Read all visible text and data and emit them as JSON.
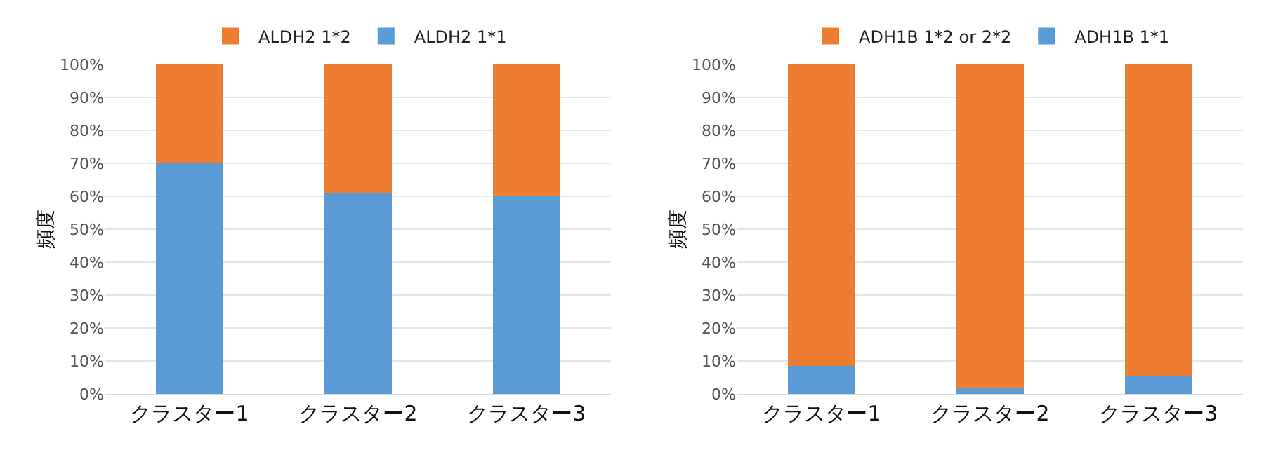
{
  "chart_data": [
    {
      "type": "bar",
      "stacked": true,
      "ylabel": "頻度",
      "categories": [
        "クラスター1",
        "クラスター2",
        "クラスター3"
      ],
      "series": [
        {
          "name": "ALDH2 1*1",
          "color": "#5b9bd5",
          "values": [
            70,
            61,
            60
          ]
        },
        {
          "name": "ALDH2 1*2",
          "color": "#ed7d31",
          "values": [
            30,
            39,
            40
          ]
        }
      ],
      "ylim": [
        0,
        100
      ],
      "yticks": [
        {
          "value": 0,
          "label": "0%"
        },
        {
          "value": 10,
          "label": "10%"
        },
        {
          "value": 20,
          "label": "20%"
        },
        {
          "value": 30,
          "label": "30%"
        },
        {
          "value": 40,
          "label": "40%"
        },
        {
          "value": 50,
          "label": "50%"
        },
        {
          "value": 60,
          "label": "60%"
        },
        {
          "value": 70,
          "label": "70%"
        },
        {
          "value": 80,
          "label": "80%"
        },
        {
          "value": 90,
          "label": "90%"
        },
        {
          "value": 100,
          "label": "100%"
        }
      ],
      "grid": "y",
      "legend": "top"
    },
    {
      "type": "bar",
      "stacked": true,
      "ylabel": "頻度",
      "categories": [
        "クラスター1",
        "クラスター2",
        "クラスター3"
      ],
      "series": [
        {
          "name": "ADH1B 1*1",
          "color": "#5b9bd5",
          "values": [
            8.5,
            1.8,
            5.4
          ]
        },
        {
          "name": "ADH1B 1*2 or 2*2",
          "color": "#ed7d31",
          "values": [
            91.5,
            98.2,
            94.6
          ]
        }
      ],
      "ylim": [
        0,
        100
      ],
      "yticks": [
        {
          "value": 0,
          "label": "0%"
        },
        {
          "value": 10,
          "label": "10%"
        },
        {
          "value": 20,
          "label": "20%"
        },
        {
          "value": 30,
          "label": "30%"
        },
        {
          "value": 40,
          "label": "40%"
        },
        {
          "value": 50,
          "label": "50%"
        },
        {
          "value": 60,
          "label": "60%"
        },
        {
          "value": 70,
          "label": "70%"
        },
        {
          "value": 80,
          "label": "80%"
        },
        {
          "value": 90,
          "label": "90%"
        },
        {
          "value": 100,
          "label": "100%"
        }
      ],
      "grid": "y",
      "legend": "top"
    }
  ]
}
